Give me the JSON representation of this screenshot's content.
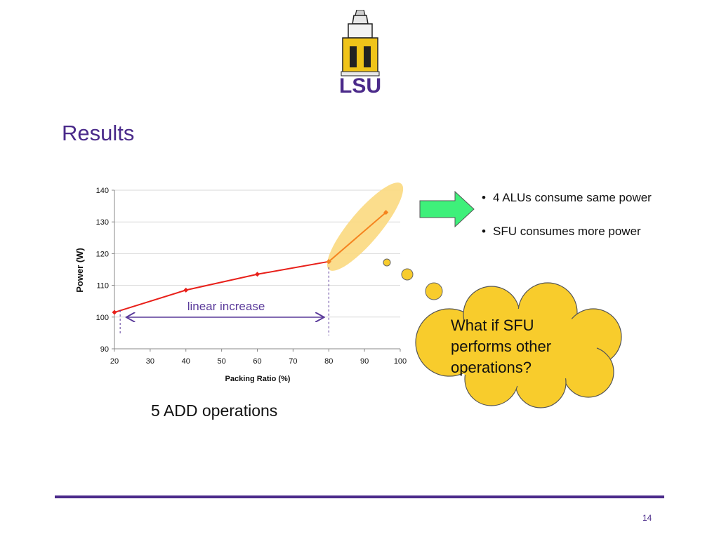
{
  "slide": {
    "title": "Results",
    "page_number": "14",
    "logo_text": "LSU",
    "caption": "5 ADD operations"
  },
  "bullets": [
    "4 ALUs consume same power",
    "SFU consumes more power"
  ],
  "thought_bubble": {
    "text": "What if SFU performs other operations?"
  },
  "annotations": {
    "range_label": "linear increase"
  },
  "colors": {
    "title": "#4a2a8a",
    "series_main": "#e8201a",
    "series_sfu": "#f5841f",
    "highlight_ellipse": "#fbd980",
    "cloud": "#f8cc2c",
    "arrow": "#3ef07a",
    "footer_rule": "#4b2a8a",
    "annotation": "#5a3a9a"
  },
  "chart_data": {
    "type": "line",
    "xlabel": "Packing Ratio (%)",
    "ylabel": "Power (W)",
    "xlim": [
      20,
      100
    ],
    "ylim": [
      90,
      140
    ],
    "x_ticks": [
      20,
      30,
      40,
      50,
      60,
      70,
      80,
      90,
      100
    ],
    "y_ticks": [
      90,
      100,
      110,
      120,
      130,
      140
    ],
    "grid": true,
    "series": [
      {
        "color": "#e8201a",
        "x": [
          20,
          40,
          60,
          80
        ],
        "y": [
          101.5,
          108.5,
          113.5,
          117.5
        ]
      },
      {
        "color": "#f5841f",
        "x": [
          80,
          96
        ],
        "y": [
          117.5,
          133
        ]
      }
    ],
    "range_annotation": {
      "label": "linear increase",
      "x_start": 21.6,
      "x_end": 80
    }
  }
}
